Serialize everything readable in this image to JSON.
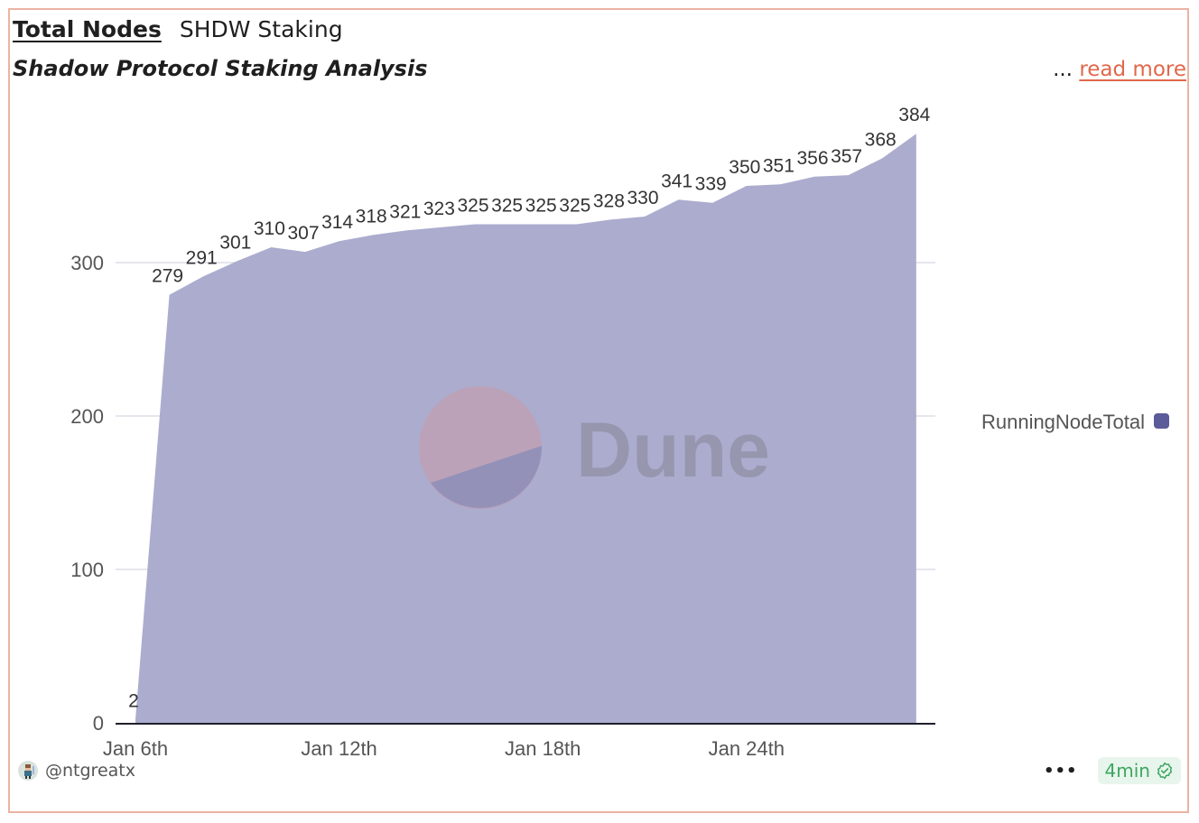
{
  "header": {
    "title": "Total Nodes",
    "dashboard_name": "SHDW Staking",
    "subtitle": "Shadow Protocol Staking Analysis",
    "ellipsis": "...",
    "read_more": "read more"
  },
  "footer": {
    "author": "@ntgreatx",
    "more_icon": "more-horizontal-icon",
    "refresh_age": "4min",
    "status_icon": "verified-check-icon"
  },
  "watermark": "Dune",
  "colors": {
    "series": "#5b5b9a",
    "area_fill": "#abacce",
    "accent": "#e0684b",
    "border": "#ebb3a3",
    "badge_bg": "#e8f5ec",
    "badge_text": "#3ea661"
  },
  "chart_data": {
    "type": "area",
    "title": "Total Nodes",
    "subtitle": "Shadow Protocol Staking Analysis",
    "xlabel": "",
    "ylabel": "",
    "x": [
      "Jan 6th",
      "Jan 7th",
      "Jan 8th",
      "Jan 9th",
      "Jan 10th",
      "Jan 11th",
      "Jan 12th",
      "Jan 13th",
      "Jan 14th",
      "Jan 15th",
      "Jan 16th",
      "Jan 17th",
      "Jan 18th",
      "Jan 19th",
      "Jan 20th",
      "Jan 21st",
      "Jan 22nd",
      "Jan 23rd",
      "Jan 24th",
      "Jan 25th",
      "Jan 26th",
      "Jan 27th",
      "Jan 28th",
      "Jan 29th"
    ],
    "series": [
      {
        "name": "RunningNodeTotal",
        "values": [
          2,
          279,
          291,
          301,
          310,
          307,
          314,
          318,
          321,
          323,
          325,
          325,
          325,
          325,
          328,
          330,
          341,
          339,
          350,
          351,
          356,
          357,
          368,
          384
        ]
      }
    ],
    "x_tick_labels": [
      "Jan 6th",
      "Jan 12th",
      "Jan 18th",
      "Jan 24th"
    ],
    "y_tick_labels": [
      "0",
      "100",
      "200",
      "300"
    ],
    "ylim": [
      0,
      384
    ],
    "grid": true,
    "legend": {
      "position": "right",
      "entries": [
        "RunningNodeTotal"
      ]
    },
    "data_labels": true
  }
}
